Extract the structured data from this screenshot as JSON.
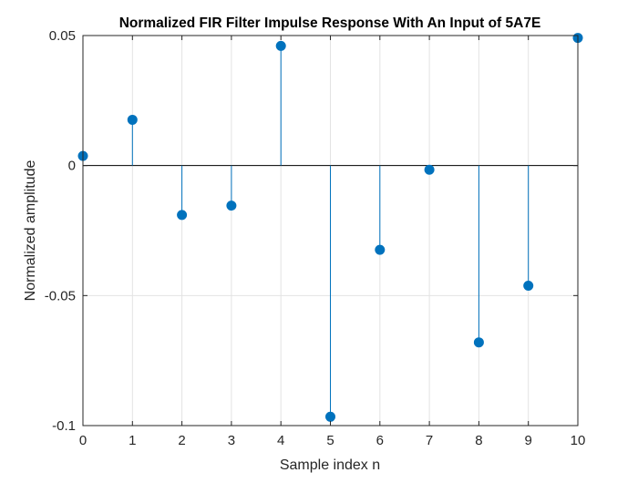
{
  "chart_data": {
    "type": "stem",
    "title": "Normalized FIR Filter Impulse Response With An Input of 5A7E",
    "xlabel": "Sample index n",
    "ylabel": "Normalized amplitude",
    "x": [
      0,
      1,
      2,
      3,
      4,
      5,
      6,
      7,
      8,
      9,
      10
    ],
    "values": [
      0.0037,
      0.0176,
      -0.019,
      -0.0154,
      0.046,
      -0.0966,
      -0.0324,
      -0.0016,
      -0.068,
      -0.0462,
      0.0491
    ],
    "xlim": [
      0,
      10
    ],
    "ylim": [
      -0.1,
      0.05
    ],
    "xticks": [
      0,
      1,
      2,
      3,
      4,
      5,
      6,
      7,
      8,
      9,
      10
    ],
    "xtick_labels": [
      "0",
      "1",
      "2",
      "3",
      "4",
      "5",
      "6",
      "7",
      "8",
      "9",
      "10"
    ],
    "yticks": [
      -0.1,
      -0.05,
      0,
      0.05
    ],
    "ytick_labels": [
      "-0.1",
      "-0.05",
      "0",
      "0.05"
    ],
    "grid": true,
    "baseline": 0,
    "color": "#0072BD"
  }
}
